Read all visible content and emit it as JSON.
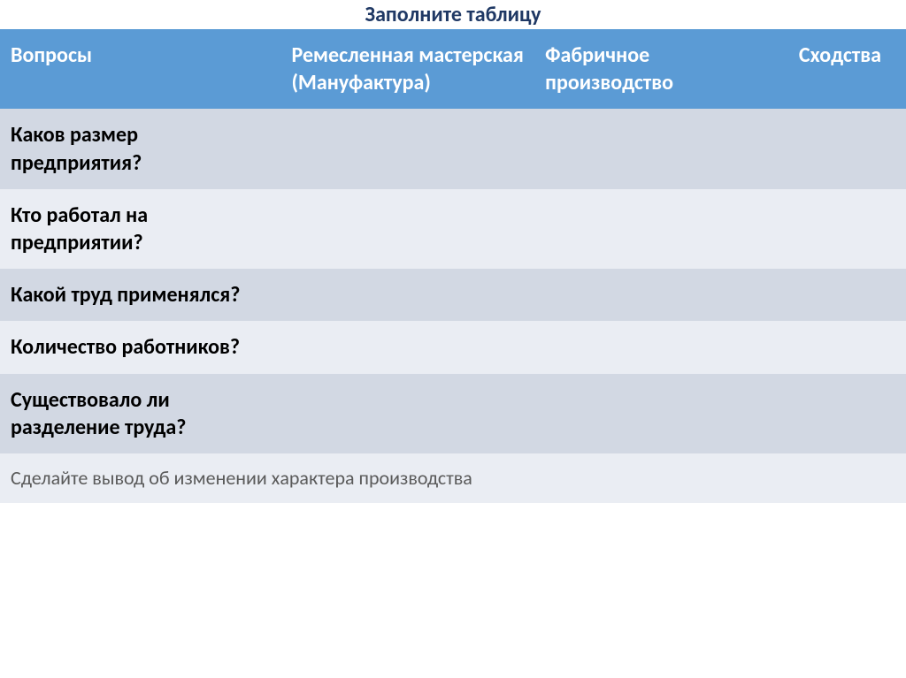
{
  "title": "Заполните таблицу",
  "headers": [
    "Вопросы",
    "Ремесленная мастерская (Мануфактура)",
    "Фабричное производство",
    "Сходства"
  ],
  "rows": [
    {
      "question": "Каков размер предприятия?",
      "c1": "",
      "c2": "",
      "c3": ""
    },
    {
      "question": "Кто работал на предприятии?",
      "c1": "",
      "c2": "",
      "c3": ""
    },
    {
      "question": "Какой труд применялся?",
      "c1": "",
      "c2": "",
      "c3": ""
    },
    {
      "question": "Количество работников?",
      "c1": "",
      "c2": "",
      "c3": ""
    },
    {
      "question": "Существовало ли разделение труда?",
      "c1": "",
      "c2": "",
      "c3": ""
    }
  ],
  "footer": "Сделайте вывод  об изменении характера производства",
  "colors": {
    "header_bg": "#5b9bd5",
    "header_text": "#ffffff",
    "row_odd_bg": "#d2d8e3",
    "row_even_bg": "#eaedf3",
    "title_color": "#1f3864",
    "question_color": "#000000",
    "footer_text": "#5a5a5a"
  },
  "fonts": {
    "title_size_pt": 18,
    "header_size_pt": 18,
    "body_size_pt": 18,
    "footer_size_pt": 16,
    "family": "Calibri"
  },
  "column_widths_pct": [
    31,
    28,
    28,
    13
  ]
}
